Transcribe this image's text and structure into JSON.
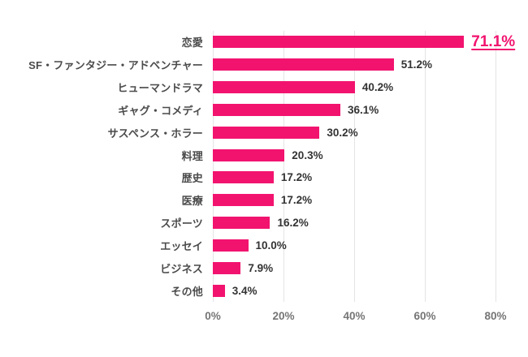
{
  "chart_data": {
    "type": "bar",
    "orientation": "horizontal",
    "title": "",
    "categories": [
      "恋愛",
      "SF・ファンタジー・アドベンチャー",
      "ヒューマンドラマ",
      "ギャグ・コメディ",
      "サスペンス・ホラー",
      "料理",
      "歴史",
      "医療",
      "スポーツ",
      "エッセイ",
      "ビジネス",
      "その他"
    ],
    "values": [
      71.1,
      51.2,
      40.2,
      36.1,
      30.2,
      20.3,
      17.2,
      17.2,
      16.2,
      10.0,
      7.9,
      3.4
    ],
    "value_labels": [
      "71.1%",
      "51.2%",
      "40.2%",
      "36.1%",
      "30.2%",
      "20.3%",
      "17.2%",
      "17.2%",
      "16.2%",
      "10.0%",
      "7.9%",
      "3.4%"
    ],
    "highlight_index": 0,
    "x_ticks": [
      "0%",
      "20%",
      "40%",
      "60%",
      "80%"
    ],
    "xlim": [
      0,
      80
    ],
    "grid": true,
    "legend": false,
    "bar_color": "#F2136F",
    "category_label_color": "#4B4B4B",
    "value_label_color": "#333333",
    "tick_label_color": "#757575",
    "gridline_color": "#E4E4E4",
    "background_color": "#FFFFFF"
  }
}
